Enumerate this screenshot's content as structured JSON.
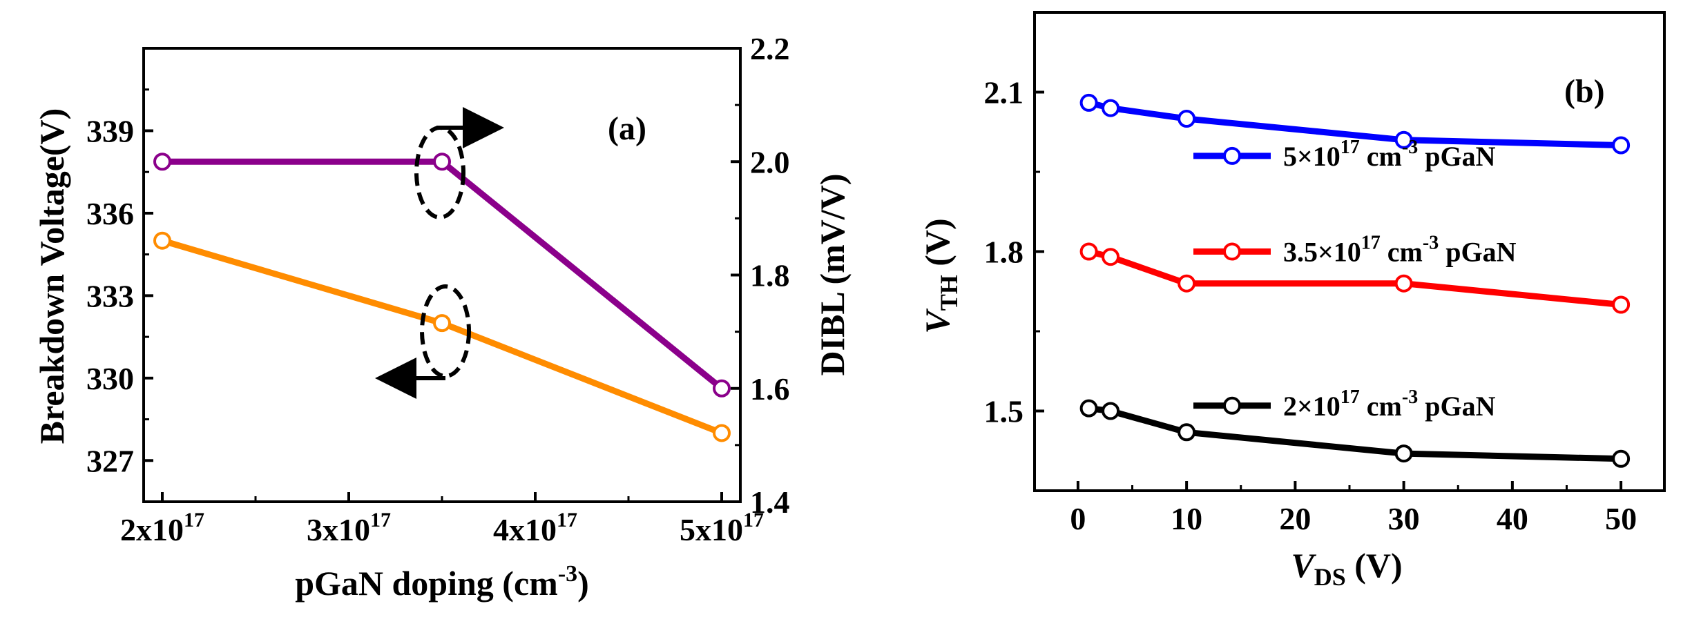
{
  "chart_data": [
    {
      "type": "line",
      "panel_label": "(a)",
      "xlabel": "pGaN doping (cm−3)",
      "xlabel_parts": {
        "base": "pGaN doping (cm",
        "sup": "-3",
        "close": ")"
      },
      "ylabel": "Breakdown Voltage(V)",
      "y2label": "DIBL (mV/V)",
      "xlim": [
        1.9e+17,
        5.1e+17
      ],
      "ylim": [
        325.5,
        342
      ],
      "y2lim": [
        1.4,
        2.2
      ],
      "xticks": [
        {
          "value": 2e+17,
          "base": "2x10",
          "exp": "17"
        },
        {
          "value": 3e+17,
          "base": "3x10",
          "exp": "17"
        },
        {
          "value": 4e+17,
          "base": "4x10",
          "exp": "17"
        },
        {
          "value": 5e+17,
          "base": "5x10",
          "exp": "17"
        }
      ],
      "yticks": [
        327,
        330,
        333,
        336,
        339
      ],
      "y2ticks": [
        1.4,
        1.6,
        1.8,
        2.0,
        2.2
      ],
      "y2tick_labels": [
        "1.4",
        "1.6",
        "1.8",
        "2.0",
        "2.2"
      ],
      "series": [
        {
          "name": "Breakdown Voltage",
          "axis": "left",
          "color": "#FF8C00",
          "x": [
            2e+17,
            3.5e+17,
            5e+17
          ],
          "values": [
            335,
            332,
            328
          ]
        },
        {
          "name": "DIBL",
          "axis": "right",
          "color": "#8B008B",
          "x": [
            2e+17,
            3.5e+17,
            5e+17
          ],
          "values": [
            2.0,
            2.0,
            1.6
          ]
        }
      ],
      "annotations": [
        {
          "type": "arrow",
          "direction": "right",
          "refers_to": "DIBL"
        },
        {
          "type": "arrow",
          "direction": "left",
          "refers_to": "Breakdown Voltage"
        }
      ]
    },
    {
      "type": "line",
      "panel_label": "(b)",
      "xlabel": "VDS (V)",
      "xlabel_parts": {
        "main": "V",
        "sub": "DS",
        "unit": " (V)"
      },
      "ylabel": "VTH (V)",
      "ylabel_parts": {
        "main": "V",
        "sub": "TH",
        "unit": " (V)"
      },
      "xlim": [
        -4,
        54
      ],
      "ylim": [
        1.35,
        2.25
      ],
      "xticks": [
        0,
        10,
        20,
        30,
        40,
        50
      ],
      "yticks": [
        1.5,
        1.8,
        2.1
      ],
      "ytick_labels": [
        "1.5",
        "1.8",
        "2.1"
      ],
      "series": [
        {
          "name": "5×10^17 cm^-3 pGaN",
          "legend": {
            "base": "5×10",
            "exp": "17",
            "mid": " cm",
            "exp2": "-3",
            "tail": " pGaN"
          },
          "color": "#0000FF",
          "x": [
            1,
            3,
            10,
            30,
            50
          ],
          "values": [
            2.08,
            2.07,
            2.05,
            2.01,
            2.0
          ]
        },
        {
          "name": "3.5×10^17 cm^-3 pGaN",
          "legend": {
            "base": "3.5×10",
            "exp": "17",
            "mid": " cm",
            "exp2": "-3",
            "tail": " pGaN"
          },
          "color": "#FF0000",
          "x": [
            1,
            3,
            10,
            30,
            50
          ],
          "values": [
            1.8,
            1.79,
            1.74,
            1.74,
            1.7
          ]
        },
        {
          "name": "2×10^17 cm^-3 pGaN",
          "legend": {
            "base": "2×10",
            "exp": "17",
            "mid": " cm",
            "exp2": "-3",
            "tail": " pGaN"
          },
          "color": "#000000",
          "x": [
            1,
            3,
            10,
            30,
            50
          ],
          "values": [
            1.505,
            1.5,
            1.46,
            1.42,
            1.41
          ]
        }
      ]
    }
  ]
}
